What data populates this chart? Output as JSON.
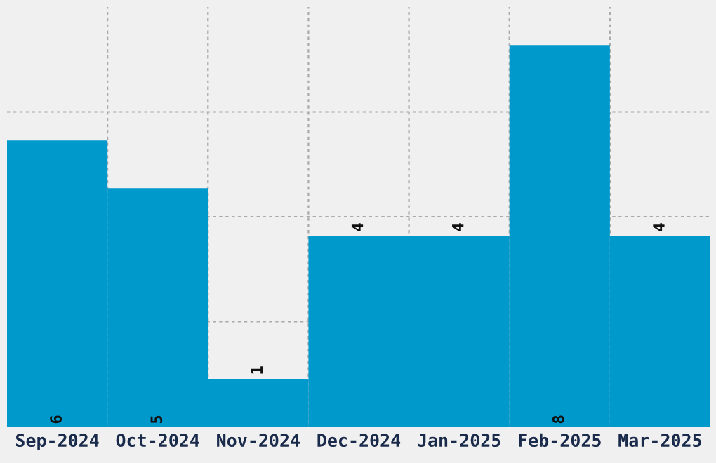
{
  "chart_data": {
    "type": "bar",
    "categories": [
      "Sep-2024",
      "Oct-2024",
      "Nov-2024",
      "Dec-2024",
      "Jan-2025",
      "Feb-2025",
      "Mar-2025"
    ],
    "values": [
      6,
      5,
      1,
      4,
      4,
      8,
      4
    ],
    "color": "#0099cc",
    "data_labels": true,
    "ylim": [
      0,
      8.8
    ],
    "yticks": [
      {
        "value": 2.2,
        "label": null
      },
      {
        "value": 4.4,
        "label": null
      },
      {
        "value": 6.6,
        "label": null
      }
    ],
    "tick_labels": "x",
    "grid": true
  }
}
